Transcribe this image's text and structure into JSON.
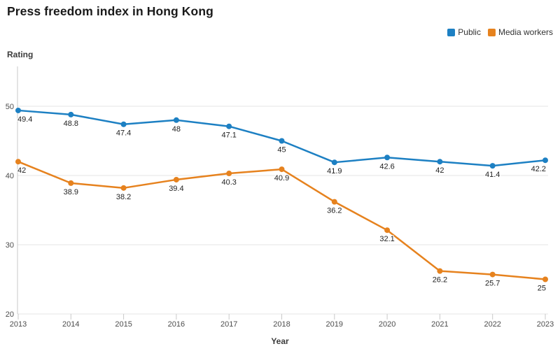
{
  "title": "Press freedom index in Hong Kong",
  "colors": {
    "public_blue": "#1d80c3",
    "media_orange": "#e6821e",
    "grid": "#e4e4e4",
    "axis": "#c9c9c9"
  },
  "chart_data": {
    "type": "line",
    "x": [
      2013,
      2014,
      2015,
      2016,
      2017,
      2018,
      2019,
      2020,
      2021,
      2022,
      2023
    ],
    "series": [
      {
        "name": "Public",
        "color": "#1d80c3",
        "values": [
          49.4,
          48.8,
          47.4,
          48,
          47.1,
          45,
          41.9,
          42.6,
          42,
          41.4,
          42.2
        ]
      },
      {
        "name": "Media workers",
        "color": "#e6821e",
        "values": [
          42,
          38.9,
          38.2,
          39.4,
          40.3,
          40.9,
          36.2,
          32.1,
          26.2,
          25.7,
          25
        ]
      }
    ],
    "title": "Press freedom index in Hong Kong",
    "xlabel": "Year",
    "ylabel": "Rating",
    "ylim": [
      20,
      55.8
    ],
    "yticks": [
      20,
      30,
      40,
      50
    ],
    "grid": true,
    "legend_position": "top-right",
    "point_labels": true
  }
}
